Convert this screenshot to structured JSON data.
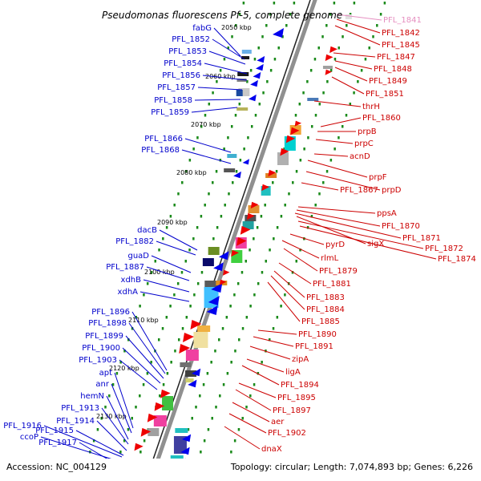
{
  "title": "Pseudomonas fluorescens Pf-5, complete genome",
  "footer": {
    "accession": "Accession: NC_004129",
    "summary": "Topology: circular; Length: 7,074,893 bp; Genes: 6,226"
  },
  "kbp_ticks": [
    "2050 kbp",
    "2060 kbp",
    "2070 kbp",
    "2080 kbp",
    "2090 kbp",
    "2100 kbp",
    "2110 kbp",
    "2120 kbp",
    "2130 kbp"
  ],
  "left_labels": [
    "fabG",
    "PFL_1852",
    "PFL_1853",
    "PFL_1854",
    "PFL_1856",
    "PFL_1857",
    "PFL_1858",
    "PFL_1859",
    "PFL_1866",
    "PFL_1868",
    "dacB",
    "PFL_1882",
    "guaD",
    "PFL_1887",
    "xdhB",
    "xdhA",
    "PFL_1896",
    "PFL_1898",
    "PFL_1899",
    "PFL_1900",
    "PFL_1903",
    "apt",
    "anr",
    "hemN",
    "PFL_1913",
    "PFL_1914",
    "PFL_1916",
    "PFL_1915",
    "ccoP",
    "PFL_1917"
  ],
  "right_labels": [
    "PFL_1841",
    "PFL_1842",
    "PFL_1845",
    "PFL_1847",
    "PFL_1848",
    "PFL_1849",
    "PFL_1851",
    "thrH",
    "PFL_1860",
    "prpB",
    "prpC",
    "acnD",
    "prpF",
    "PFL_1867",
    "prpD",
    "ppsA",
    "PFL_1870",
    "PFL_1871",
    "sigX",
    "PFL_1872",
    "PFL_1874",
    "pyrD",
    "rlmL",
    "PFL_1879",
    "PFL_1881",
    "PFL_1883",
    "PFL_1884",
    "PFL_1885",
    "PFL_1890",
    "PFL_1891",
    "zipA",
    "ligA",
    "PFL_1894",
    "PFL_1895",
    "PFL_1897",
    "aer",
    "PFL_1902",
    "dnaX"
  ],
  "colors": {
    "left_label": "#0000cc",
    "right_label": "#cc0000",
    "faded_label": "#e68fc0",
    "backbone": "#909090",
    "tick_dot": "#1a8a1a",
    "forward_arrow": "#0000ee",
    "reverse_arrow": "#ee0000"
  }
}
